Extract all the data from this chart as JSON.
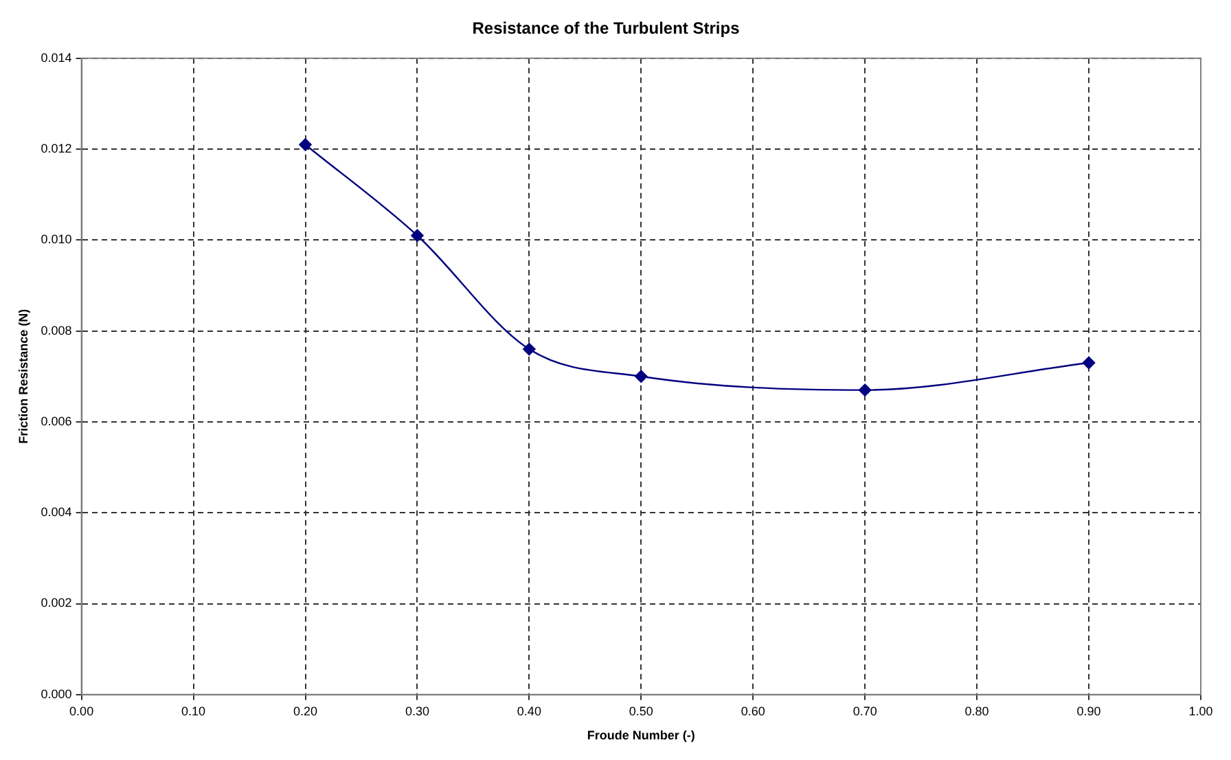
{
  "chart_data": {
    "type": "line",
    "title": "Resistance of the Turbulent Strips",
    "xlabel": "Froude Number (-)",
    "ylabel": "Friction Resistance (N)",
    "x": [
      0.2,
      0.3,
      0.4,
      0.5,
      0.7,
      0.9
    ],
    "series": [
      {
        "color": "#000080",
        "values": [
          0.0121,
          0.0101,
          0.0076,
          0.007,
          0.0067,
          0.0073
        ]
      }
    ],
    "xlim": [
      0,
      1
    ],
    "xticks": [
      {
        "value": 0,
        "label": "0.00"
      },
      {
        "value": 0.1,
        "label": "0.10"
      },
      {
        "value": 0.2,
        "label": "0.20"
      },
      {
        "value": 0.3,
        "label": "0.30"
      },
      {
        "value": 0.4,
        "label": "0.40"
      },
      {
        "value": 0.5,
        "label": "0.50"
      },
      {
        "value": 0.6,
        "label": "0.60"
      },
      {
        "value": 0.7,
        "label": "0.70"
      },
      {
        "value": 0.8,
        "label": "0.80"
      },
      {
        "value": 0.9,
        "label": "0.90"
      },
      {
        "value": 1,
        "label": "1.00"
      }
    ],
    "ylim": [
      0,
      0.014
    ],
    "yticks": [
      {
        "value": 0,
        "label": "0.000"
      },
      {
        "value": 0.002,
        "label": "0.002"
      },
      {
        "value": 0.004,
        "label": "0.004"
      },
      {
        "value": 0.006,
        "label": "0.006"
      },
      {
        "value": 0.008,
        "label": "0.008"
      },
      {
        "value": 0.01,
        "label": "0.010"
      },
      {
        "value": 0.012,
        "label": "0.012"
      },
      {
        "value": 0.014,
        "label": "0.014"
      }
    ],
    "grid": true,
    "marker": "diamond",
    "line_style": "solid",
    "legend": false
  }
}
